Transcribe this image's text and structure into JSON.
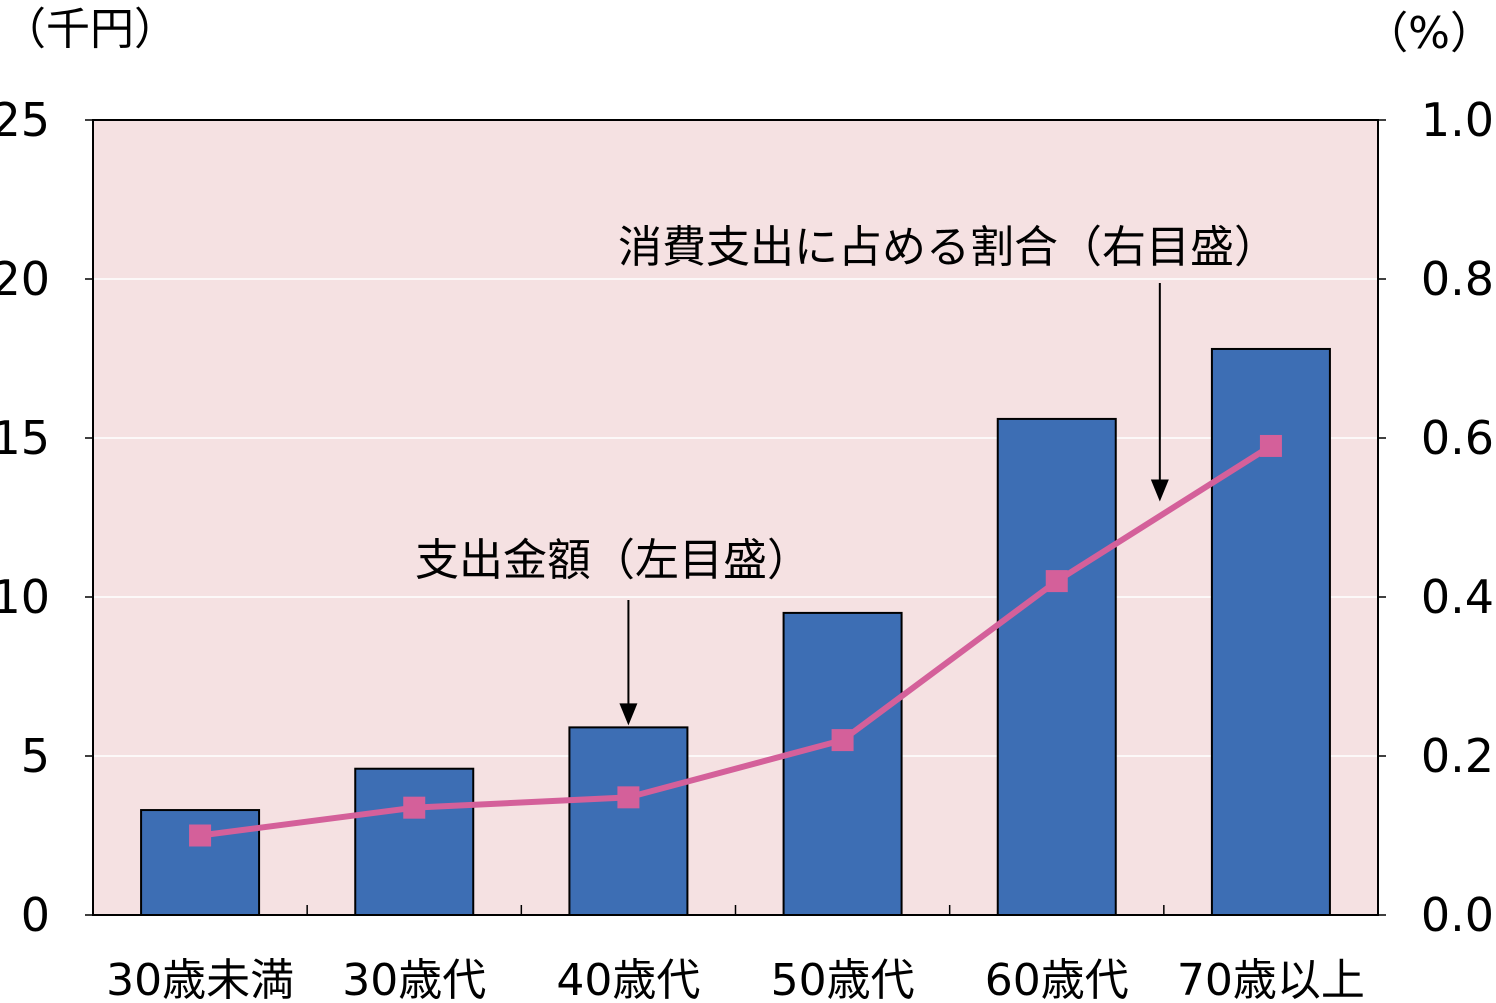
{
  "chart_data": {
    "type": "bar",
    "categories": [
      "30歳未満",
      "30歳代",
      "40歳代",
      "50歳代",
      "60歳代",
      "70歳以上"
    ],
    "series": [
      {
        "type": "bar",
        "axis": "left",
        "values": [
          3.3,
          4.6,
          5.9,
          9.5,
          15.6,
          17.8
        ],
        "color": "#3D6EB4"
      },
      {
        "type": "line",
        "axis": "right",
        "values": [
          0.1,
          0.135,
          0.148,
          0.22,
          0.42,
          0.59
        ],
        "color": "#D4609A"
      }
    ],
    "left_axis": {
      "unit": "（千円）",
      "ylim": [
        0,
        25
      ],
      "ticks": [
        "0",
        "5",
        "10",
        "15",
        "20",
        "25"
      ]
    },
    "right_axis": {
      "unit": "（%）",
      "ylim": [
        0,
        1.0
      ],
      "ticks": [
        "0.0",
        "0.2",
        "0.4",
        "0.6",
        "0.8",
        "1.0"
      ]
    },
    "annotations": [
      {
        "text": "支出金額（左目盛）",
        "target_series": 0,
        "target_index": 2
      },
      {
        "text": "消費支出に占める割合（右目盛）",
        "target_series": 1,
        "target_index": 4
      }
    ],
    "plot_background": "#F5E1E2",
    "grid": true,
    "legend": "none"
  }
}
